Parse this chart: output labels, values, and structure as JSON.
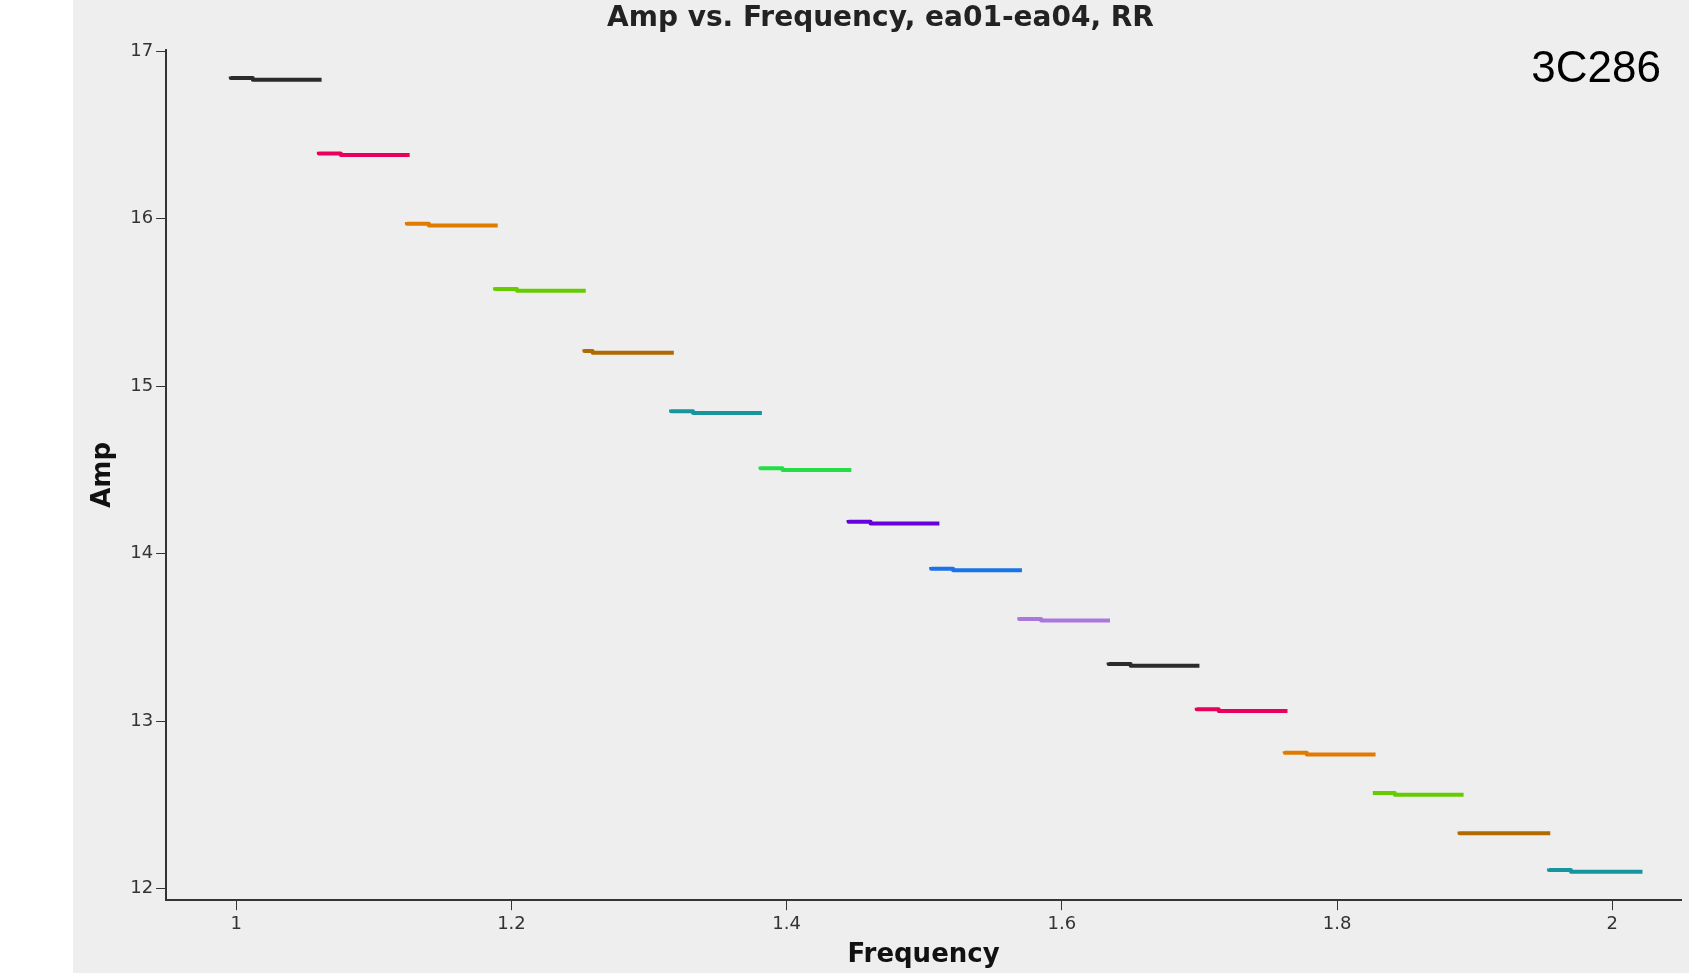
{
  "chart_data": {
    "type": "step",
    "title": "Amp vs. Frequency, ea01-ea04, RR",
    "xlabel": "Frequency",
    "ylabel": "Amp",
    "annotations": [
      "3C286"
    ],
    "xlim": [
      0.949,
      2.05
    ],
    "xticks": [
      1,
      1.2,
      1.4,
      1.6,
      1.8,
      2
    ],
    "ylim": [
      11.93,
      17.01
    ],
    "yticks": [
      12,
      13,
      14,
      15,
      16,
      17
    ],
    "grid": false,
    "legend": false,
    "marker": "none",
    "line_style": "solid",
    "series": [
      {
        "color": "#2b2b2b",
        "x": [
          0.996,
          1.012,
          1.046,
          1.062
        ],
        "values": [
          16.85,
          16.84,
          16.83,
          16.83
        ]
      },
      {
        "color": "#e8005a",
        "x": [
          1.06,
          1.076,
          1.11,
          1.126
        ],
        "values": [
          16.4,
          16.39,
          16.38,
          16.38
        ]
      },
      {
        "color": "#e07b00",
        "x": [
          1.124,
          1.14,
          1.174,
          1.19
        ],
        "values": [
          15.98,
          15.97,
          15.96,
          15.96
        ]
      },
      {
        "color": "#66cc00",
        "x": [
          1.188,
          1.204,
          1.238,
          1.254
        ],
        "values": [
          15.59,
          15.58,
          15.57,
          15.57
        ]
      },
      {
        "color": "#b06a00",
        "x": [
          1.253,
          1.259,
          1.302,
          1.318
        ],
        "values": [
          15.22,
          15.21,
          15.2,
          15.2
        ]
      },
      {
        "color": "#17959e",
        "x": [
          1.316,
          1.332,
          1.366,
          1.382
        ],
        "values": [
          14.86,
          14.85,
          14.84,
          14.84
        ]
      },
      {
        "color": "#22dd44",
        "x": [
          1.381,
          1.397,
          1.431,
          1.447
        ],
        "values": [
          14.52,
          14.51,
          14.5,
          14.5
        ]
      },
      {
        "color": "#6600dd",
        "x": [
          1.445,
          1.461,
          1.495,
          1.511
        ],
        "values": [
          14.2,
          14.19,
          14.18,
          14.18
        ]
      },
      {
        "color": "#1a73e8",
        "x": [
          1.505,
          1.521,
          1.555,
          1.571
        ],
        "values": [
          13.92,
          13.91,
          13.9,
          13.9
        ]
      },
      {
        "color": "#aa77dd",
        "x": [
          1.569,
          1.585,
          1.619,
          1.635
        ],
        "values": [
          13.62,
          13.61,
          13.6,
          13.6
        ]
      },
      {
        "color": "#2b2b2b",
        "x": [
          1.634,
          1.65,
          1.684,
          1.7
        ],
        "values": [
          13.35,
          13.34,
          13.33,
          13.33
        ]
      },
      {
        "color": "#e8005a",
        "x": [
          1.698,
          1.714,
          1.748,
          1.764
        ],
        "values": [
          13.08,
          13.07,
          13.06,
          13.06
        ]
      },
      {
        "color": "#e07b00",
        "x": [
          1.762,
          1.778,
          1.812,
          1.828
        ],
        "values": [
          12.82,
          12.81,
          12.8,
          12.8
        ]
      },
      {
        "color": "#66cc00",
        "x": [
          1.826,
          1.842,
          1.876,
          1.892
        ],
        "values": [
          12.57,
          12.57,
          12.56,
          12.56
        ]
      },
      {
        "color": "#b06a00",
        "x": [
          1.889,
          1.905,
          1.939,
          1.955
        ],
        "values": [
          12.34,
          12.33,
          12.33,
          12.33
        ]
      },
      {
        "color": "#17959e",
        "x": [
          1.954,
          1.97,
          2.006,
          2.022
        ],
        "values": [
          12.12,
          12.11,
          12.1,
          12.1
        ]
      }
    ]
  }
}
